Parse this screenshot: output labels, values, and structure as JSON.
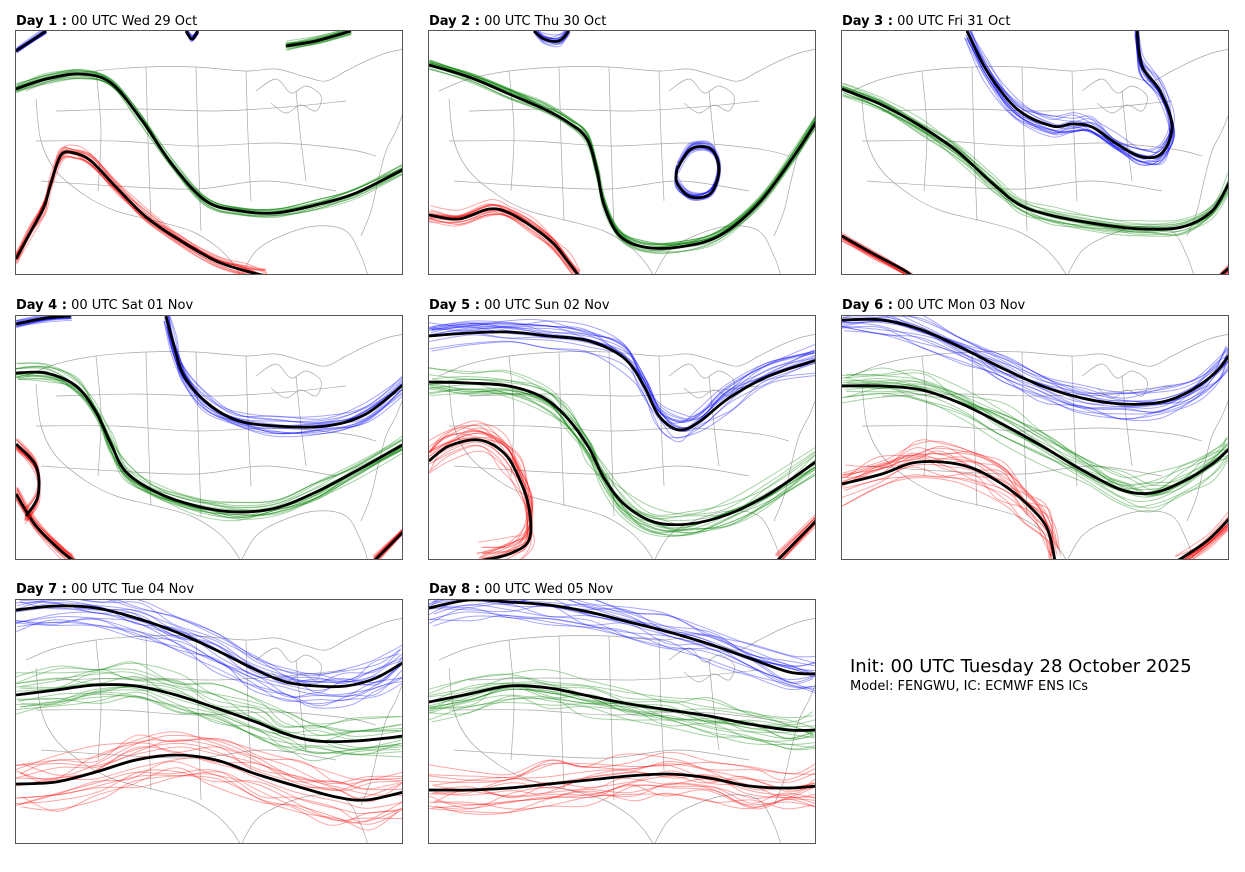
{
  "panels": [
    {
      "day_label": "Day 1 :",
      "time": "00 UTC Wed 29 Oct"
    },
    {
      "day_label": "Day 2 :",
      "time": "00 UTC Thu 30 Oct"
    },
    {
      "day_label": "Day 3 :",
      "time": "00 UTC Fri 31 Oct"
    },
    {
      "day_label": "Day 4 :",
      "time": "00 UTC Sat 01 Nov"
    },
    {
      "day_label": "Day 5 :",
      "time": "00 UTC Sun 02 Nov"
    },
    {
      "day_label": "Day 6 :",
      "time": "00 UTC Mon 03 Nov"
    },
    {
      "day_label": "Day 7 :",
      "time": "00 UTC Tue 04 Nov"
    },
    {
      "day_label": "Day 8 :",
      "time": "00 UTC Wed 05 Nov"
    }
  ],
  "info": {
    "init": "Init: 00 UTC Tuesday 28 October 2025",
    "model": "Model: FENGWU, IC: ECMWF ENS ICs"
  },
  "colors": {
    "blue": "#0000ff",
    "green": "#008000",
    "red": "#ff0000",
    "mean": "#000000",
    "border": "#8a8a8a"
  }
}
